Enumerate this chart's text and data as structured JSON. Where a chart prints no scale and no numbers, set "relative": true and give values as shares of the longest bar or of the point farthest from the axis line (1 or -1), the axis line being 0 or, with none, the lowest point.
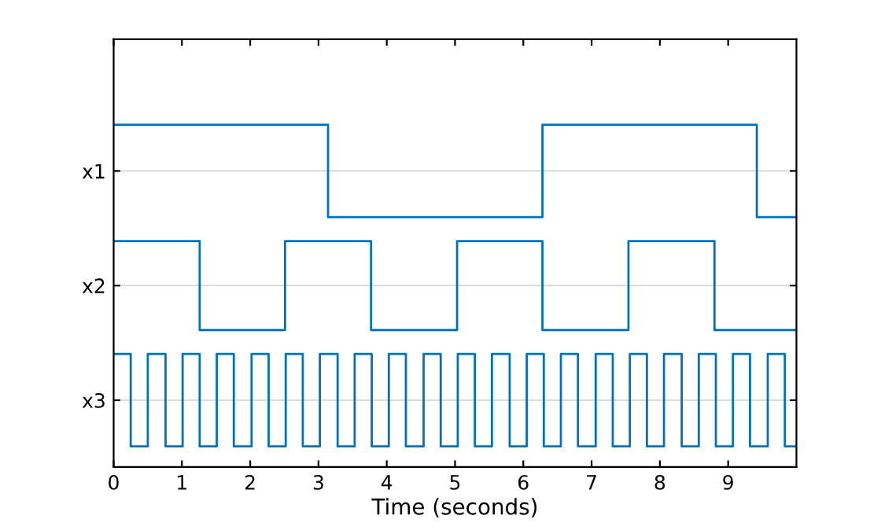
{
  "chart_data": {
    "type": "step",
    "xlabel": "Time (seconds)",
    "xlim": [
      0,
      10
    ],
    "xticks": [
      0,
      1,
      2,
      3,
      4,
      5,
      6,
      7,
      8,
      9
    ],
    "relative": true,
    "grid": "y",
    "line_style": "solid",
    "marker": "none",
    "series": [
      {
        "name": "x1",
        "color": "#0072bd",
        "x": [
          0,
          3.14,
          6.28,
          9.42,
          10
        ],
        "values": [
          1,
          0.73,
          1,
          0.73,
          0.73
        ]
      },
      {
        "name": "x2",
        "color": "#0072bd",
        "x": [
          0,
          1.26,
          2.51,
          3.77,
          5.03,
          6.28,
          7.54,
          8.8,
          10
        ],
        "values": [
          0.66,
          0.4,
          0.66,
          0.4,
          0.66,
          0.4,
          0.66,
          0.4,
          0.4
        ]
      },
      {
        "name": "x3",
        "color": "#0072bd",
        "x": [
          0,
          0.25,
          0.5,
          0.76,
          1.01,
          1.26,
          1.51,
          1.76,
          2.02,
          2.27,
          2.52,
          2.77,
          3.02,
          3.28,
          3.53,
          3.78,
          4.03,
          4.28,
          4.54,
          4.79,
          5.04,
          5.29,
          5.54,
          5.8,
          6.05,
          6.3,
          6.55,
          6.8,
          7.06,
          7.31,
          7.56,
          7.81,
          8.06,
          8.32,
          8.57,
          8.82,
          9.07,
          9.32,
          9.58,
          9.83,
          10
        ],
        "values": [
          0.33,
          0.06,
          0.33,
          0.06,
          0.33,
          0.06,
          0.33,
          0.06,
          0.33,
          0.06,
          0.33,
          0.06,
          0.33,
          0.06,
          0.33,
          0.06,
          0.33,
          0.06,
          0.33,
          0.06,
          0.33,
          0.06,
          0.33,
          0.06,
          0.33,
          0.06,
          0.33,
          0.06,
          0.33,
          0.06,
          0.33,
          0.06,
          0.33,
          0.06,
          0.33,
          0.06,
          0.33,
          0.06,
          0.33,
          0.06,
          0.06
        ]
      }
    ]
  }
}
